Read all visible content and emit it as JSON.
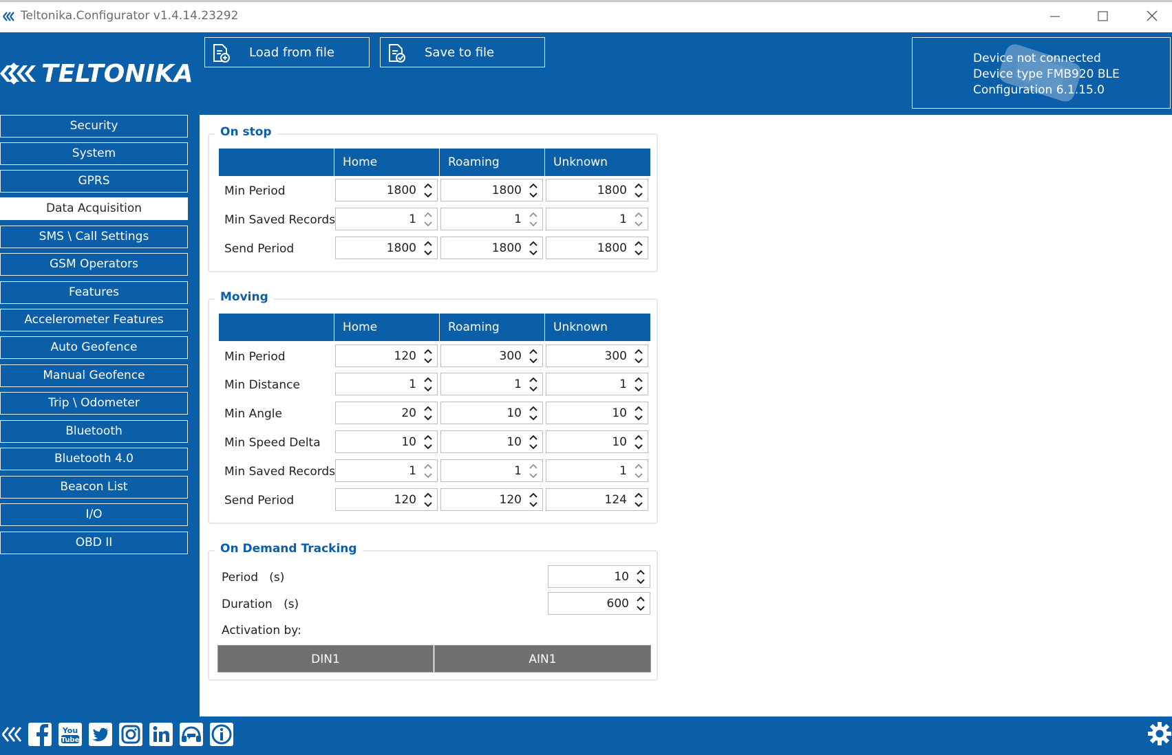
{
  "window": {
    "title": "Teltonika.Configurator v1.4.14.23292"
  },
  "header": {
    "logo_text": "TELTONIKA",
    "load_label": "Load from file",
    "save_label": "Save to file",
    "device": {
      "status": "Device not connected",
      "type": "Device type  FMB920 BLE",
      "configuration": "Configuration  6.1.15.0"
    }
  },
  "sidebar": {
    "items": [
      {
        "label": "Security"
      },
      {
        "label": "System"
      },
      {
        "label": "GPRS"
      },
      {
        "label": "Data Acquisition",
        "active": true
      },
      {
        "label": "SMS \\ Call Settings"
      },
      {
        "label": "GSM Operators"
      },
      {
        "label": "Features"
      },
      {
        "label": "Accelerometer Features"
      },
      {
        "label": "Auto Geofence"
      },
      {
        "label": "Manual Geofence"
      },
      {
        "label": "Trip \\ Odometer"
      },
      {
        "label": "Bluetooth"
      },
      {
        "label": "Bluetooth 4.0"
      },
      {
        "label": "Beacon List"
      },
      {
        "label": "I/O"
      },
      {
        "label": "OBD II"
      }
    ]
  },
  "columns": [
    "Home",
    "Roaming",
    "Unknown"
  ],
  "on_stop": {
    "title": "On stop",
    "rows": [
      {
        "label": "Min Period",
        "values": [
          "1800",
          "1800",
          "1800"
        ]
      },
      {
        "label": "Min Saved Records",
        "values": [
          "1",
          "1",
          "1"
        ]
      },
      {
        "label": "Send Period",
        "values": [
          "1800",
          "1800",
          "1800"
        ]
      }
    ]
  },
  "moving": {
    "title": "Moving",
    "rows": [
      {
        "label": "Min Period",
        "values": [
          "120",
          "300",
          "300"
        ]
      },
      {
        "label": "Min Distance",
        "values": [
          "1",
          "1",
          "1"
        ]
      },
      {
        "label": "Min Angle",
        "values": [
          "20",
          "10",
          "10"
        ]
      },
      {
        "label": "Min Speed Delta",
        "values": [
          "10",
          "10",
          "10"
        ]
      },
      {
        "label": "Min Saved Records",
        "values": [
          "1",
          "1",
          "1"
        ]
      },
      {
        "label": "Send Period",
        "values": [
          "120",
          "120",
          "124"
        ]
      }
    ]
  },
  "on_demand": {
    "title": "On Demand Tracking",
    "period_label": "Period",
    "period_unit": "(s)",
    "period_value": "10",
    "duration_label": "Duration",
    "duration_unit": "(s)",
    "duration_value": "600",
    "activation_label": "Activation by:",
    "activation_options": [
      "DIN1",
      "AIN1"
    ]
  },
  "footer": {
    "icons": [
      "teltonika-icon",
      "facebook-icon",
      "youtube-icon",
      "twitter-icon",
      "instagram-icon",
      "linkedin-icon",
      "support-icon",
      "info-icon"
    ],
    "settings_icon": "gear-icon"
  },
  "colors": {
    "brand_blue": "#0b5ea8",
    "button_gray": "#707070"
  }
}
